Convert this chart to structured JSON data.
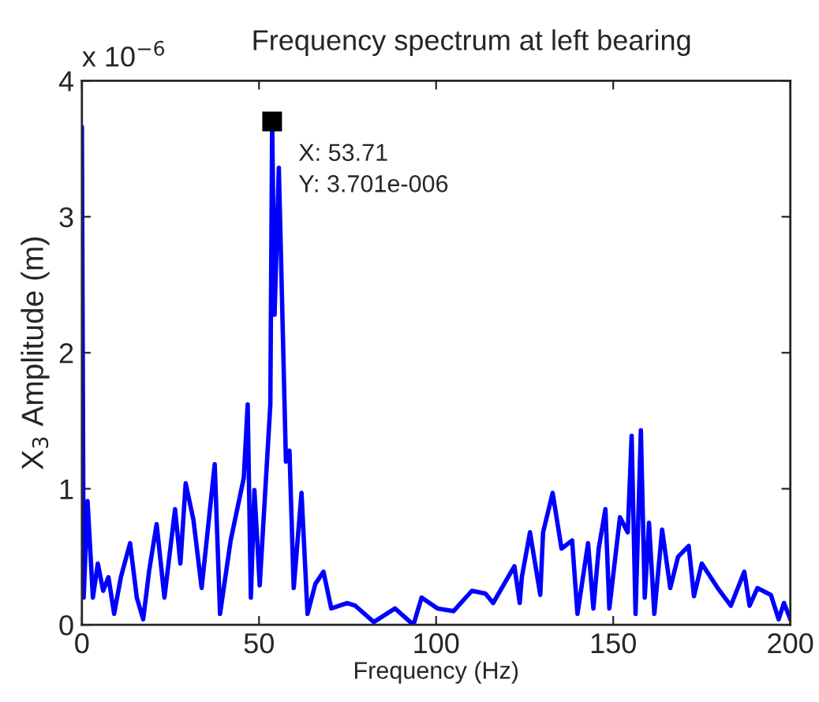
{
  "chart_data": {
    "type": "line",
    "title": "Frequency spectrum at left bearing",
    "xlabel": "Frequency (Hz)",
    "ylabel": "X$_{3}$ Amplitude (m)",
    "x": [
      0,
      0.5,
      1.6,
      3.1,
      4.5,
      6,
      7.5,
      9.1,
      11,
      13.6,
      15.5,
      17.3,
      19,
      21.1,
      23.3,
      26.3,
      27.8,
      29.3,
      31.5,
      33.8,
      37.5,
      39.0,
      42.0,
      45.7,
      46.8,
      47.7,
      48.7,
      50.2,
      53.2,
      53.71,
      54.4,
      55.6,
      57.6,
      58.6,
      59.8,
      62.0,
      63.7,
      65.9,
      68.2,
      70.4,
      74.9,
      77.2,
      82.4,
      88.4,
      93.6,
      95.9,
      100.4,
      104.9,
      110.1,
      113.9,
      116.1,
      122.1,
      123.6,
      124.2,
      126.5,
      129.4,
      130.2,
      132.9,
      135.4,
      138.4,
      139.9,
      142.9,
      144.4,
      145.9,
      147.8,
      148.9,
      151.9,
      154.1,
      155.2,
      156.3,
      157.8,
      158.9,
      160.1,
      161.6,
      163.8,
      166.1,
      168.3,
      171.3,
      172.8,
      175.0,
      179.5,
      183.2,
      187.0,
      188.5,
      190.7,
      194.5,
      196.7,
      198.2,
      200
    ],
    "series": [
      {
        "color": "#0000ff",
        "values": [
          3.66,
          0.2,
          0.91,
          0.2,
          0.45,
          0.25,
          0.35,
          0.08,
          0.35,
          0.6,
          0.2,
          0.04,
          0.4,
          0.74,
          0.2,
          0.85,
          0.45,
          1.04,
          0.77,
          0.27,
          1.18,
          0.08,
          0.62,
          1.08,
          1.62,
          0.2,
          0.99,
          0.29,
          1.62,
          3.7,
          2.28,
          3.36,
          1.2,
          1.28,
          0.27,
          0.97,
          0.08,
          0.3,
          0.39,
          0.12,
          0.16,
          0.14,
          0.02,
          0.12,
          0.0,
          0.2,
          0.12,
          0.1,
          0.25,
          0.23,
          0.16,
          0.43,
          0.16,
          0.35,
          0.68,
          0.22,
          0.68,
          0.97,
          0.56,
          0.62,
          0.08,
          0.6,
          0.12,
          0.56,
          0.85,
          0.12,
          0.79,
          0.68,
          1.39,
          0.08,
          1.43,
          0.2,
          0.75,
          0.08,
          0.7,
          0.27,
          0.5,
          0.58,
          0.21,
          0.45,
          0.27,
          0.14,
          0.39,
          0.14,
          0.27,
          0.22,
          0.04,
          0.16,
          0.04
        ]
      }
    ],
    "xlim": [
      0,
      200
    ],
    "xticks": [
      0,
      50,
      100,
      150,
      200
    ],
    "ylim": [
      0,
      4
    ],
    "yticks": [
      0,
      1,
      2,
      3,
      4
    ],
    "grid": false,
    "legend": false,
    "marker": "none",
    "line_style": "solid",
    "annotations": [
      "x 10$^{−6}$",
      {
        "text": "X: 53.71\nY: 3.701e-006",
        "x": 53.71,
        "y": 3.701
      }
    ]
  }
}
